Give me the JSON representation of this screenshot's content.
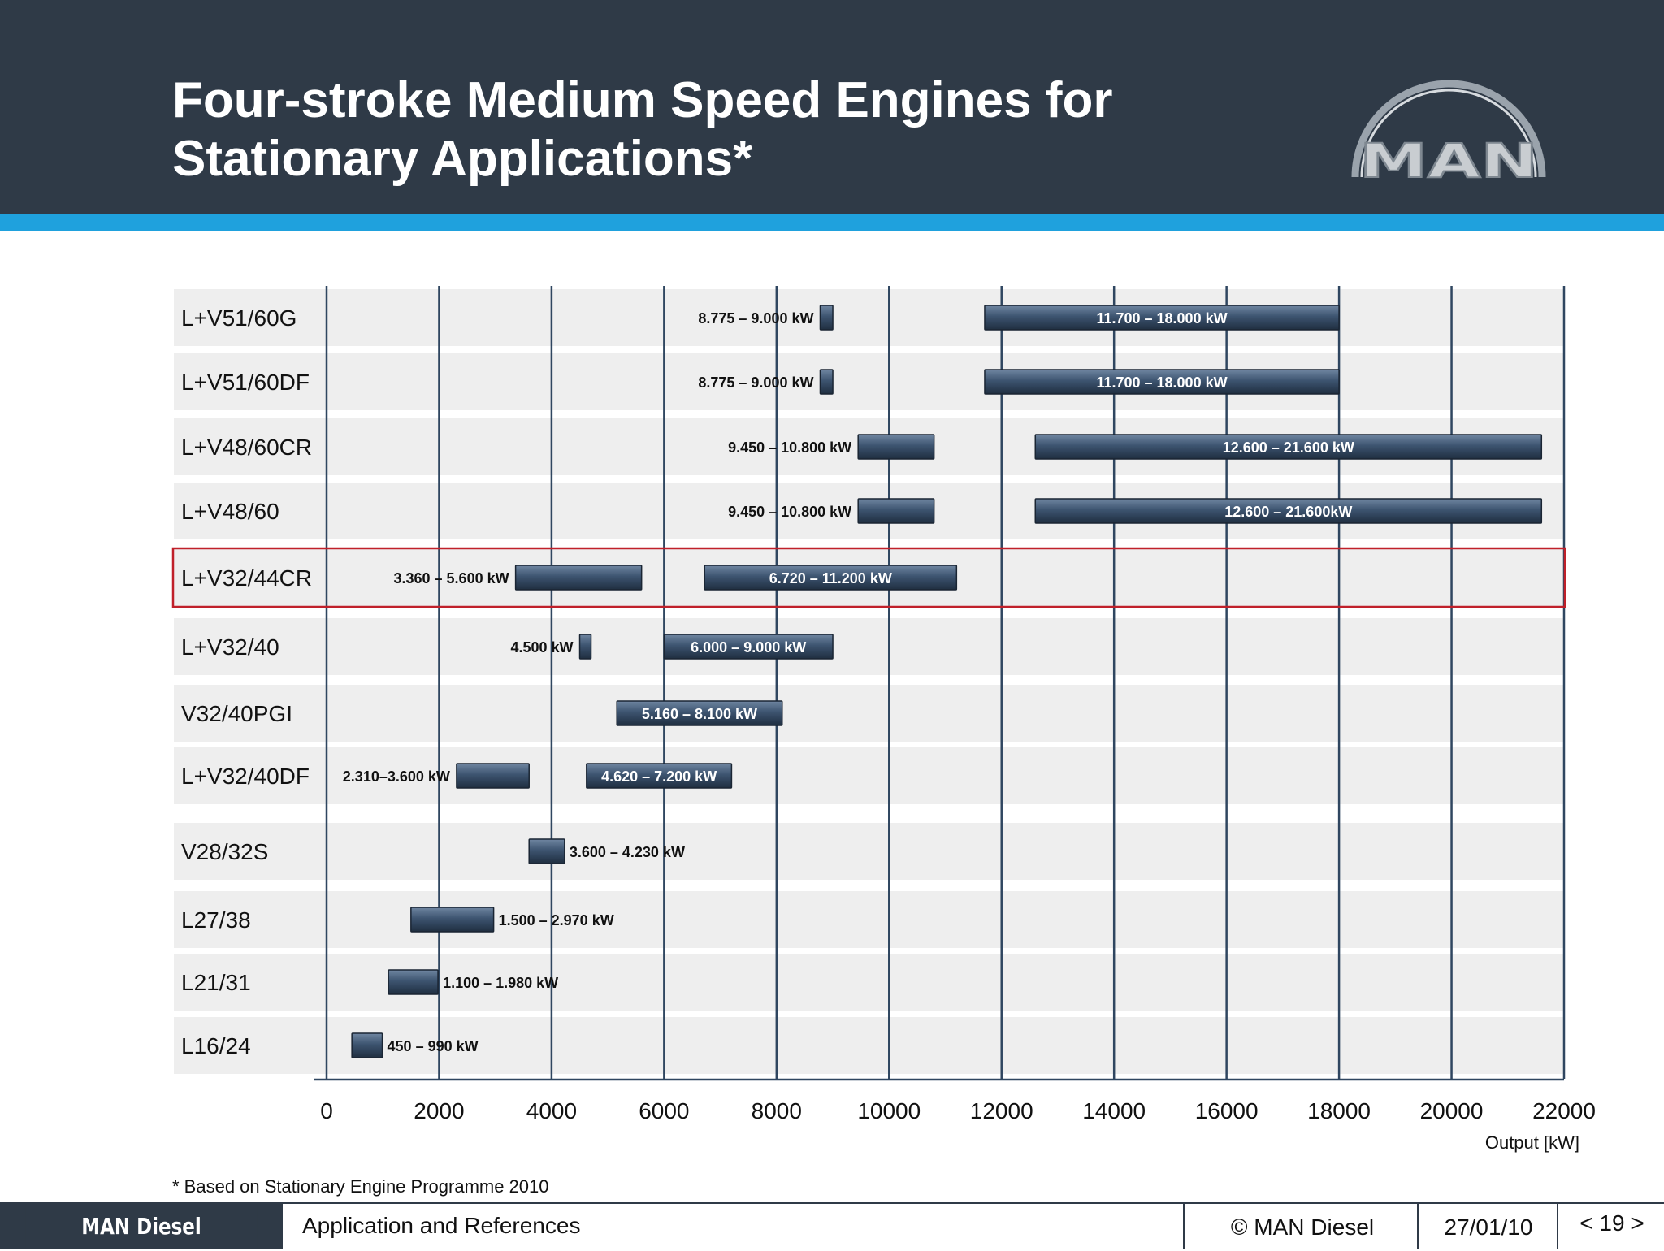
{
  "header": {
    "title_line1": "Four-stroke Medium Speed Engines for",
    "title_line2": "Stationary Applications*",
    "logo_text": "MAN"
  },
  "footnote": "* Based on Stationary Engine Programme 2010",
  "footer": {
    "brand": "MAN Diesel",
    "section": "Application and References",
    "copyright": "© MAN Diesel",
    "date": "27/01/10",
    "page": "< 19 >"
  },
  "colors": {
    "header_bg": "#2f3a47",
    "accent_stripe": "#1fa1dd",
    "bar": "#3d5470",
    "highlight_border": "#c0202a",
    "row_band": "#eeeeee"
  },
  "chart_data": {
    "type": "bar",
    "orientation": "horizontal-range",
    "xlabel": "Output [kW]",
    "xlim": [
      0,
      22000
    ],
    "xticks": [
      0,
      2000,
      4000,
      6000,
      8000,
      10000,
      12000,
      14000,
      16000,
      18000,
      20000,
      22000
    ],
    "grid": "vertical",
    "highlighted_row": "L+V32/44CR",
    "rows": [
      {
        "engine": "L+V51/60G",
        "ranges": [
          {
            "start": 8775,
            "end": 9000,
            "label": "8.775 – 9.000 kW",
            "label_pos": "left"
          },
          {
            "start": 11700,
            "end": 18000,
            "label": "11.700 – 18.000 kW",
            "label_pos": "inside"
          }
        ]
      },
      {
        "engine": "L+V51/60DF",
        "ranges": [
          {
            "start": 8775,
            "end": 9000,
            "label": "8.775 – 9.000 kW",
            "label_pos": "left"
          },
          {
            "start": 11700,
            "end": 18000,
            "label": "11.700 – 18.000 kW",
            "label_pos": "inside"
          }
        ]
      },
      {
        "engine": "L+V48/60CR",
        "ranges": [
          {
            "start": 9450,
            "end": 10800,
            "label": "9.450 – 10.800 kW",
            "label_pos": "left"
          },
          {
            "start": 12600,
            "end": 21600,
            "label": "12.600 – 21.600 kW",
            "label_pos": "inside"
          }
        ]
      },
      {
        "engine": "L+V48/60",
        "ranges": [
          {
            "start": 9450,
            "end": 10800,
            "label": "9.450 – 10.800 kW",
            "label_pos": "left"
          },
          {
            "start": 12600,
            "end": 21600,
            "label": "12.600 – 21.600kW",
            "label_pos": "inside"
          }
        ]
      },
      {
        "engine": "L+V32/44CR",
        "ranges": [
          {
            "start": 3360,
            "end": 5600,
            "label": "3.360 – 5.600 kW",
            "label_pos": "left"
          },
          {
            "start": 6720,
            "end": 11200,
            "label": "6.720 – 11.200 kW",
            "label_pos": "inside"
          }
        ]
      },
      {
        "engine": "L+V32/40",
        "ranges": [
          {
            "start": 4500,
            "end": 4700,
            "label": "4.500 kW",
            "label_pos": "left"
          },
          {
            "start": 6000,
            "end": 9000,
            "label": "6.000 – 9.000 kW",
            "label_pos": "inside"
          }
        ]
      },
      {
        "engine": "V32/40PGI",
        "ranges": [
          {
            "start": 5160,
            "end": 8100,
            "label": "5.160 – 8.100 kW",
            "label_pos": "inside"
          }
        ]
      },
      {
        "engine": "L+V32/40DF",
        "ranges": [
          {
            "start": 2310,
            "end": 3600,
            "label": "2.310–3.600 kW",
            "label_pos": "left"
          },
          {
            "start": 4620,
            "end": 7200,
            "label": "4.620 – 7.200 kW",
            "label_pos": "inside"
          }
        ]
      },
      {
        "engine": "V28/32S",
        "ranges": [
          {
            "start": 3600,
            "end": 4230,
            "label": "3.600 – 4.230 kW",
            "label_pos": "right"
          }
        ]
      },
      {
        "engine": "L27/38",
        "ranges": [
          {
            "start": 1500,
            "end": 2970,
            "label": "1.500 – 2.970 kW",
            "label_pos": "right"
          }
        ]
      },
      {
        "engine": "L21/31",
        "ranges": [
          {
            "start": 1100,
            "end": 1980,
            "label": "1.100 – 1.980 kW",
            "label_pos": "right"
          }
        ]
      },
      {
        "engine": "L16/24",
        "ranges": [
          {
            "start": 450,
            "end": 990,
            "label": "450 – 990 kW",
            "label_pos": "right"
          }
        ]
      }
    ]
  }
}
